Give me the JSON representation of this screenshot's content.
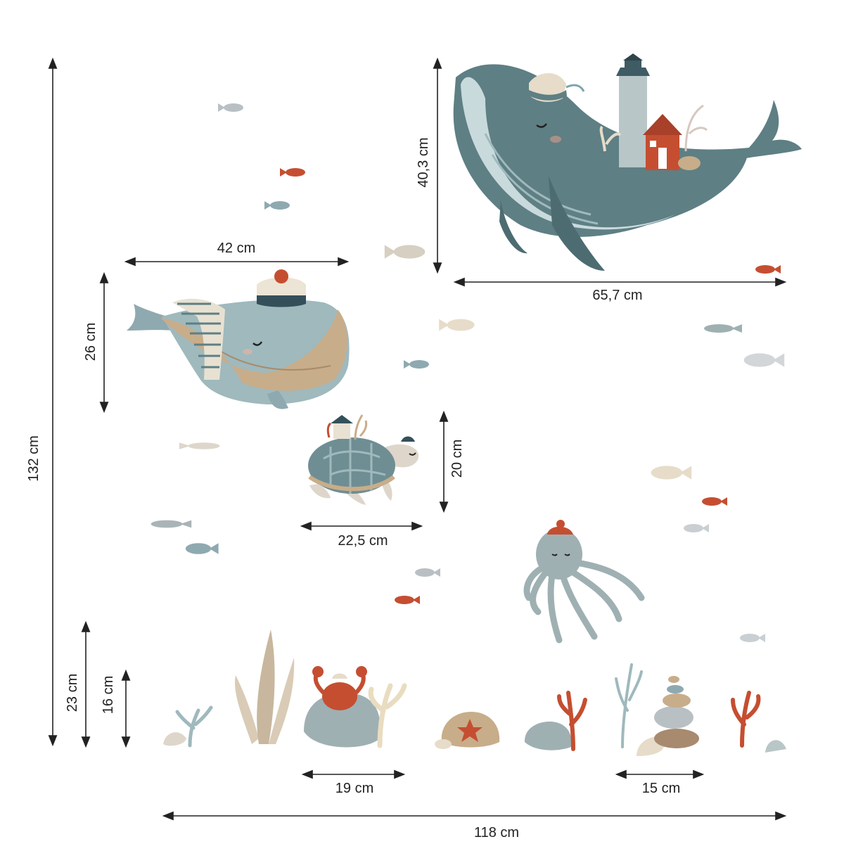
{
  "colors": {
    "ink": "#222222",
    "whale_teal": "#5e7f84",
    "whale_light": "#9fb9bd",
    "whale_belly": "#c9dadc",
    "blue_grey": "#8fa9b0",
    "sand": "#c8ad8a",
    "rust": "#c54e31",
    "beige": "#e6dcc9",
    "lighthouse": "#b9c6c7",
    "grey_fish": "#b9c0c4"
  },
  "illustrations": [
    "whale-with-lighthouse",
    "sailor-whale",
    "sea-turtle",
    "octopus",
    "crab-on-rock",
    "seaweed",
    "corals",
    "stone-stack",
    "shells",
    "small-fish"
  ],
  "dimensions": {
    "total_height": "132 cm",
    "big_whale_height": "40,3 cm",
    "big_whale_width": "65,7 cm",
    "sailor_whale_width": "42 cm",
    "sailor_whale_height": "26 cm",
    "turtle_height": "20 cm",
    "turtle_width": "22,5 cm",
    "seaweed_height": "23 cm",
    "coral_height": "16 cm",
    "crab_group_width": "19 cm",
    "stone_group_width": "15 cm",
    "total_width": "118 cm"
  }
}
